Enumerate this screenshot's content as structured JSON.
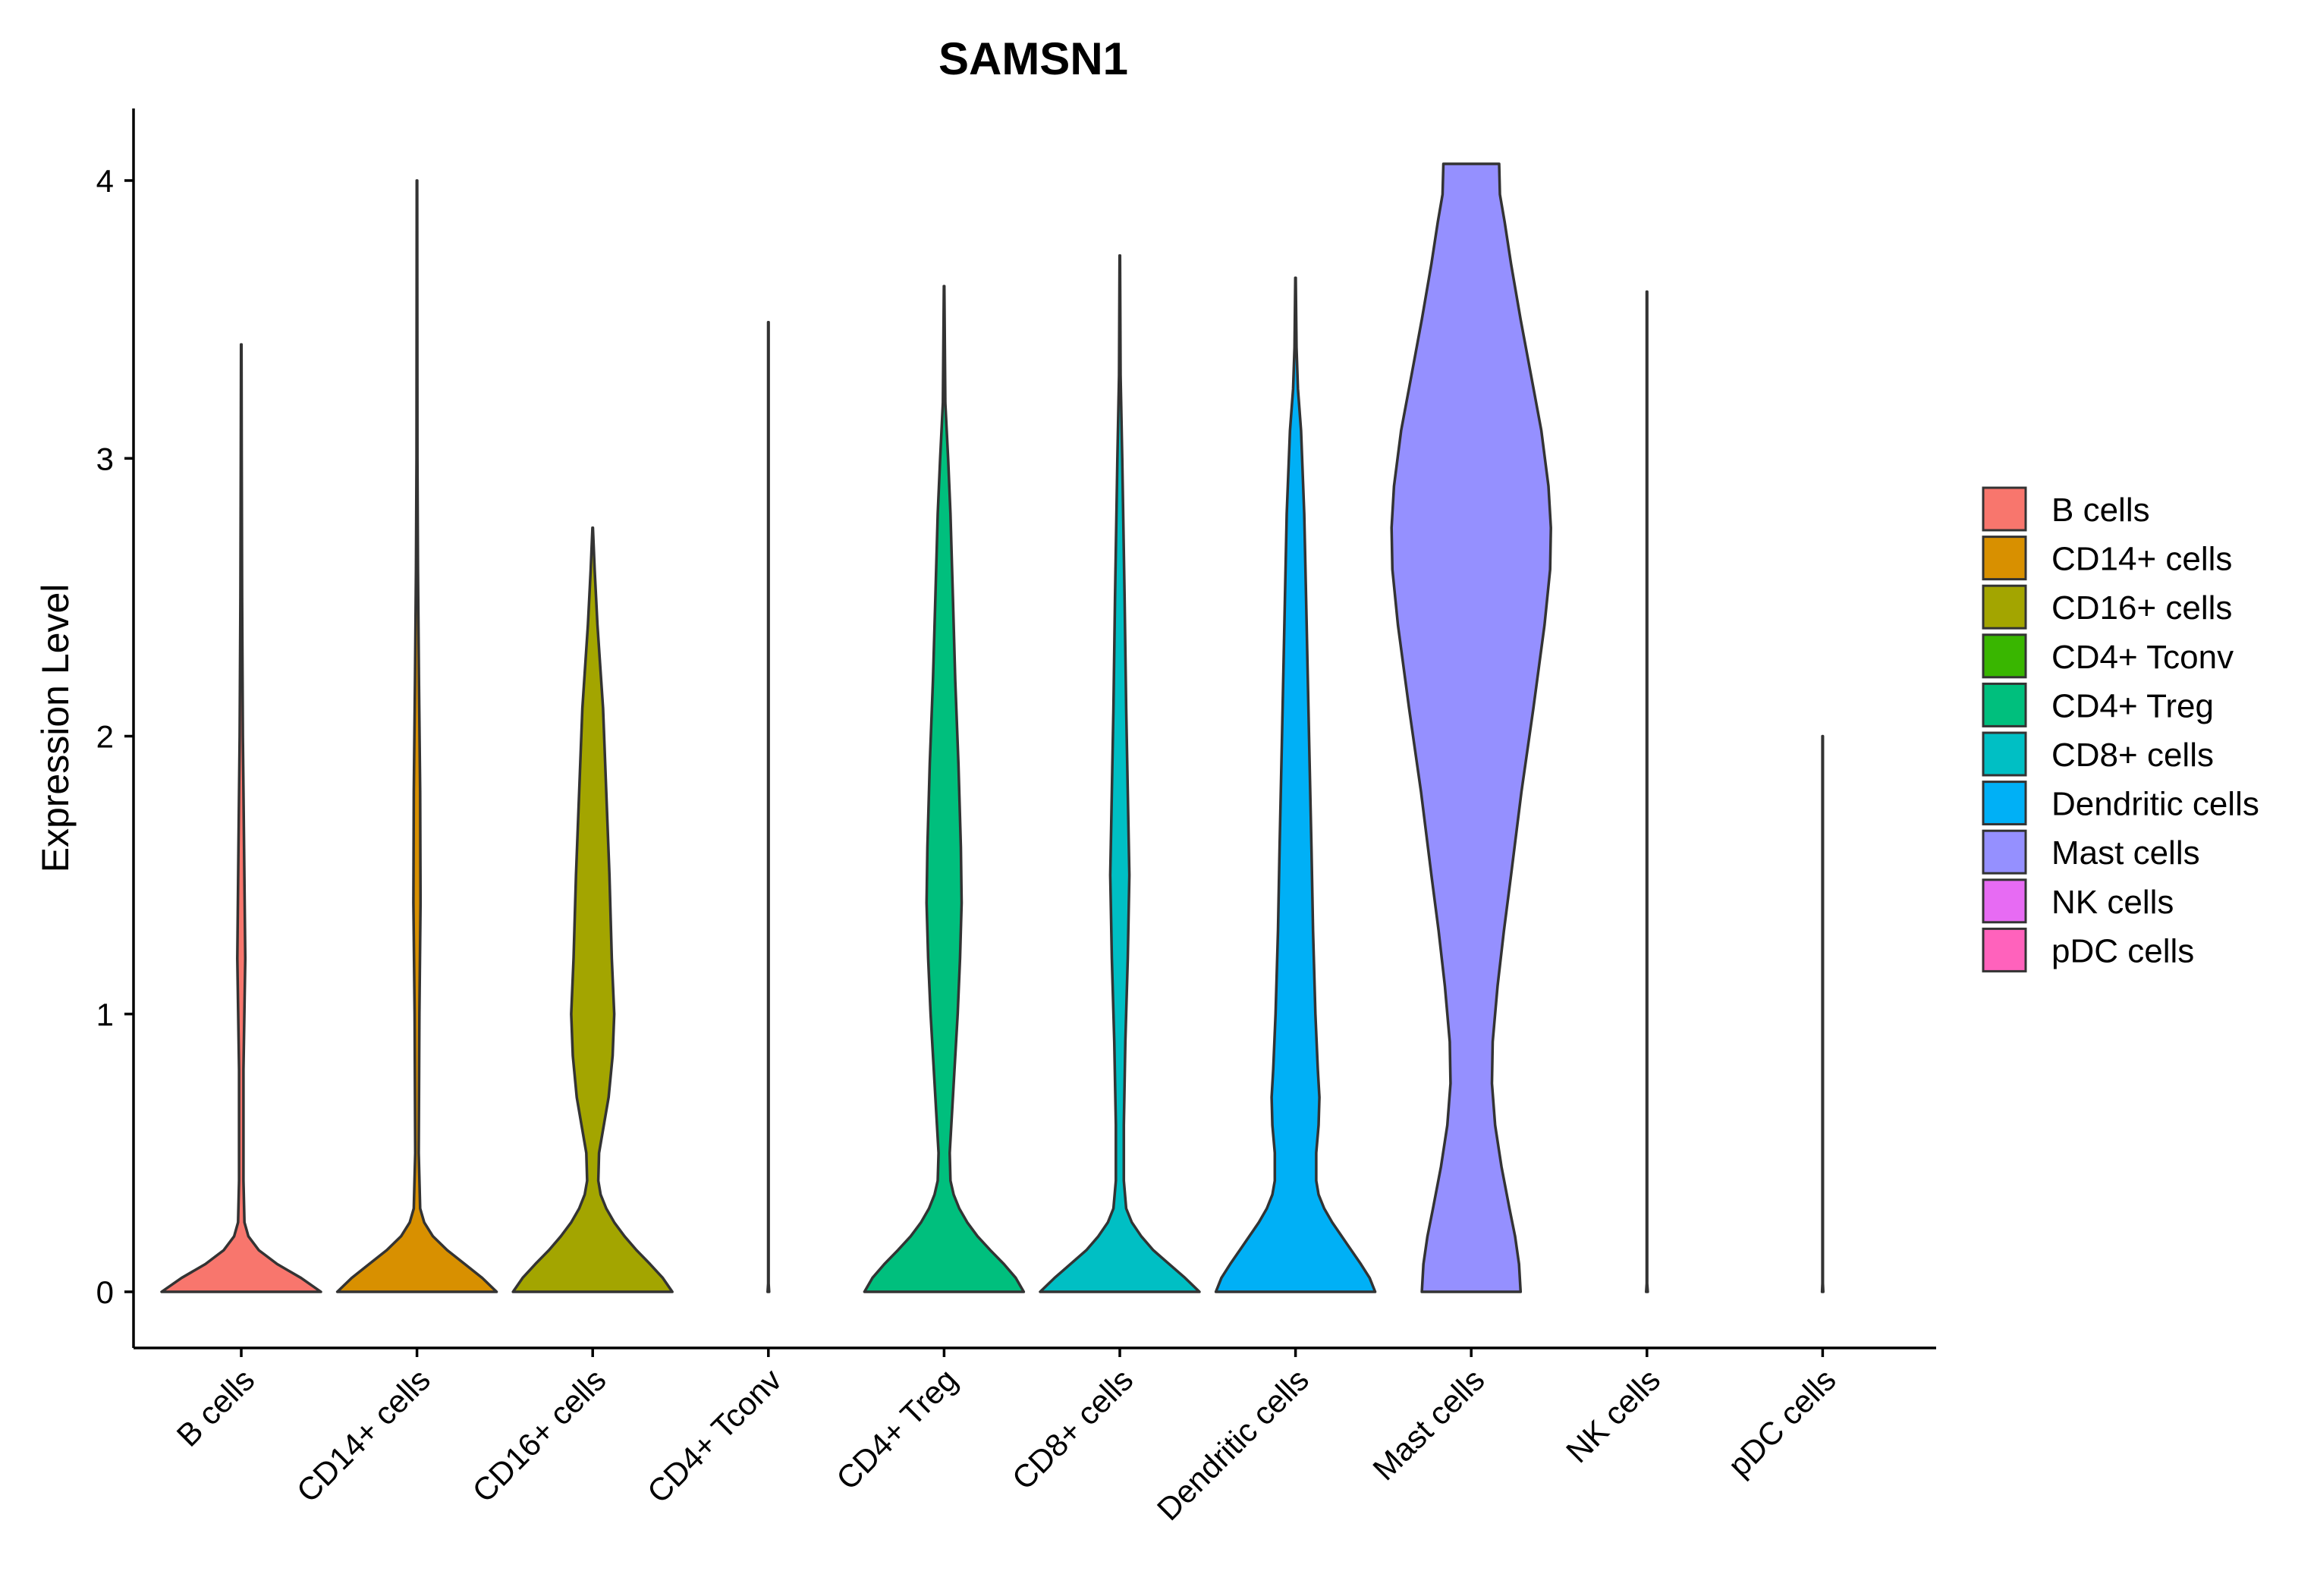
{
  "chart_data": {
    "type": "violin",
    "title": "SAMSN1",
    "xlabel": "",
    "ylabel": "Expression Level",
    "ylim": [
      -0.2,
      4.25
    ],
    "yticks": [
      0,
      1,
      2,
      3,
      4
    ],
    "ytick_labels": [
      "0",
      "1",
      "2",
      "3",
      "4"
    ],
    "grid": false,
    "legend_position": "right",
    "categories": [
      "B cells",
      "CD14+ cells",
      "CD16+ cells",
      "CD4+ Tconv",
      "CD4+ Treg",
      "CD8+ cells",
      "Dendritic cells",
      "Mast cells",
      "NK cells",
      "pDC cells"
    ],
    "series": [
      {
        "name": "B cells",
        "color": "#F8766D",
        "max": 3.41,
        "profile": [
          [
            0,
            1.0
          ],
          [
            0.05,
            0.75
          ],
          [
            0.1,
            0.45
          ],
          [
            0.15,
            0.22
          ],
          [
            0.2,
            0.09
          ],
          [
            0.25,
            0.04
          ],
          [
            0.4,
            0.028
          ],
          [
            0.8,
            0.028
          ],
          [
            1.2,
            0.05
          ],
          [
            1.6,
            0.035
          ],
          [
            2.0,
            0.02
          ],
          [
            2.5,
            0.01
          ],
          [
            3.0,
            0.006
          ],
          [
            3.41,
            0.003
          ]
        ]
      },
      {
        "name": "CD14+ cells",
        "color": "#D89000",
        "max": 4.0,
        "profile": [
          [
            0,
            1.0
          ],
          [
            0.05,
            0.82
          ],
          [
            0.1,
            0.6
          ],
          [
            0.15,
            0.38
          ],
          [
            0.2,
            0.2
          ],
          [
            0.25,
            0.09
          ],
          [
            0.3,
            0.04
          ],
          [
            0.5,
            0.022
          ],
          [
            1.0,
            0.03
          ],
          [
            1.4,
            0.045
          ],
          [
            1.8,
            0.04
          ],
          [
            2.2,
            0.025
          ],
          [
            2.6,
            0.012
          ],
          [
            3.0,
            0.006
          ],
          [
            4.0,
            0.003
          ]
        ]
      },
      {
        "name": "CD16+ cells",
        "color": "#A3A500",
        "max": 2.75,
        "profile": [
          [
            0,
            1.0
          ],
          [
            0.05,
            0.88
          ],
          [
            0.1,
            0.72
          ],
          [
            0.15,
            0.55
          ],
          [
            0.2,
            0.4
          ],
          [
            0.25,
            0.27
          ],
          [
            0.3,
            0.17
          ],
          [
            0.35,
            0.1
          ],
          [
            0.4,
            0.07
          ],
          [
            0.5,
            0.08
          ],
          [
            0.6,
            0.14
          ],
          [
            0.7,
            0.2
          ],
          [
            0.85,
            0.25
          ],
          [
            1.0,
            0.27
          ],
          [
            1.2,
            0.24
          ],
          [
            1.5,
            0.21
          ],
          [
            1.8,
            0.17
          ],
          [
            2.1,
            0.13
          ],
          [
            2.4,
            0.06
          ],
          [
            2.6,
            0.025
          ],
          [
            2.75,
            0.003
          ]
        ]
      },
      {
        "name": "CD4+ Tconv",
        "color": "#39B600",
        "max": 3.49,
        "profile": [
          [
            0,
            0.01
          ],
          [
            0.03,
            0.003
          ],
          [
            3.49,
            0.003
          ]
        ]
      },
      {
        "name": "CD4+ Treg",
        "color": "#00BF7D",
        "max": 3.62,
        "profile": [
          [
            0,
            1.0
          ],
          [
            0.05,
            0.9
          ],
          [
            0.1,
            0.75
          ],
          [
            0.15,
            0.58
          ],
          [
            0.2,
            0.42
          ],
          [
            0.25,
            0.29
          ],
          [
            0.3,
            0.19
          ],
          [
            0.35,
            0.12
          ],
          [
            0.4,
            0.08
          ],
          [
            0.5,
            0.07
          ],
          [
            0.6,
            0.09
          ],
          [
            0.8,
            0.13
          ],
          [
            1.0,
            0.17
          ],
          [
            1.2,
            0.2
          ],
          [
            1.4,
            0.22
          ],
          [
            1.6,
            0.21
          ],
          [
            1.9,
            0.18
          ],
          [
            2.2,
            0.14
          ],
          [
            2.5,
            0.11
          ],
          [
            2.8,
            0.08
          ],
          [
            3.0,
            0.05
          ],
          [
            3.2,
            0.015
          ],
          [
            3.62,
            0.003
          ]
        ]
      },
      {
        "name": "CD8+ cells",
        "color": "#00BFC4",
        "max": 3.73,
        "profile": [
          [
            0,
            1.0
          ],
          [
            0.05,
            0.82
          ],
          [
            0.1,
            0.62
          ],
          [
            0.15,
            0.42
          ],
          [
            0.2,
            0.27
          ],
          [
            0.25,
            0.15
          ],
          [
            0.3,
            0.08
          ],
          [
            0.4,
            0.05
          ],
          [
            0.6,
            0.05
          ],
          [
            0.9,
            0.07
          ],
          [
            1.2,
            0.1
          ],
          [
            1.5,
            0.12
          ],
          [
            1.8,
            0.1
          ],
          [
            2.1,
            0.08
          ],
          [
            2.5,
            0.06
          ],
          [
            3.0,
            0.03
          ],
          [
            3.3,
            0.01
          ],
          [
            3.73,
            0.003
          ]
        ]
      },
      {
        "name": "Dendritic cells",
        "color": "#00B0F6",
        "max": 3.65,
        "profile": [
          [
            0,
            1.0
          ],
          [
            0.05,
            0.93
          ],
          [
            0.1,
            0.82
          ],
          [
            0.15,
            0.7
          ],
          [
            0.2,
            0.58
          ],
          [
            0.25,
            0.46
          ],
          [
            0.3,
            0.36
          ],
          [
            0.35,
            0.29
          ],
          [
            0.4,
            0.26
          ],
          [
            0.5,
            0.26
          ],
          [
            0.6,
            0.29
          ],
          [
            0.7,
            0.3
          ],
          [
            0.8,
            0.28
          ],
          [
            1.0,
            0.25
          ],
          [
            1.3,
            0.22
          ],
          [
            1.6,
            0.2
          ],
          [
            2.0,
            0.17
          ],
          [
            2.4,
            0.14
          ],
          [
            2.8,
            0.11
          ],
          [
            3.1,
            0.07
          ],
          [
            3.25,
            0.03
          ],
          [
            3.4,
            0.012
          ],
          [
            3.65,
            0.003
          ]
        ]
      },
      {
        "name": "Mast cells",
        "color": "#9590FF",
        "max": 4.06,
        "profile": [
          [
            0,
            0.62
          ],
          [
            0.1,
            0.6
          ],
          [
            0.2,
            0.55
          ],
          [
            0.3,
            0.48
          ],
          [
            0.45,
            0.38
          ],
          [
            0.6,
            0.3
          ],
          [
            0.75,
            0.26
          ],
          [
            0.9,
            0.27
          ],
          [
            1.1,
            0.33
          ],
          [
            1.3,
            0.41
          ],
          [
            1.5,
            0.5
          ],
          [
            1.8,
            0.63
          ],
          [
            2.1,
            0.78
          ],
          [
            2.4,
            0.92
          ],
          [
            2.6,
            0.99
          ],
          [
            2.75,
            1.0
          ],
          [
            2.9,
            0.97
          ],
          [
            3.1,
            0.88
          ],
          [
            3.3,
            0.75
          ],
          [
            3.5,
            0.62
          ],
          [
            3.7,
            0.5
          ],
          [
            3.85,
            0.42
          ],
          [
            3.95,
            0.36
          ],
          [
            4.06,
            0.35
          ]
        ]
      },
      {
        "name": "NK cells",
        "color": "#E76BF3",
        "max": 3.6,
        "profile": [
          [
            0,
            0.01
          ],
          [
            0.03,
            0.003
          ],
          [
            3.6,
            0.003
          ]
        ]
      },
      {
        "name": "pDC cells",
        "color": "#FF62BC",
        "max": 2.0,
        "profile": [
          [
            0,
            0.008
          ],
          [
            0.03,
            0.003
          ],
          [
            2.0,
            0.003
          ]
        ]
      }
    ]
  }
}
